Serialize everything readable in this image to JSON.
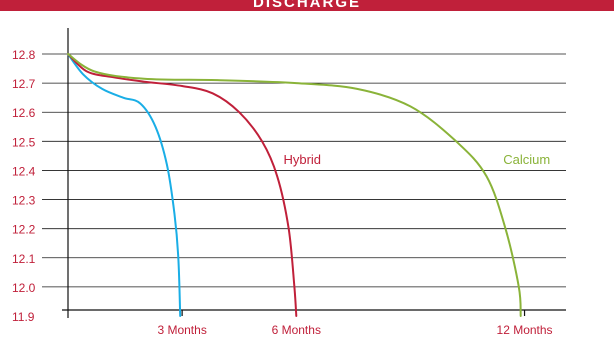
{
  "chart_data": {
    "type": "line",
    "title": "DISCHARGE",
    "xlabel": "",
    "ylabel": "",
    "x_ticks": [
      "3 Months",
      "6 Months",
      "12 Months"
    ],
    "y_ticks": [
      "12.8",
      "12.7",
      "12.6",
      "12.5",
      "12.4",
      "12.3",
      "12.2",
      "12.1",
      "12.0",
      "11.9"
    ],
    "ylim": [
      11.9,
      12.8
    ],
    "xlim_months": [
      0,
      13.3
    ],
    "grid": true,
    "series": [
      {
        "name": "",
        "color": "#1aaee6",
        "points": [
          [
            0,
            12.8
          ],
          [
            0.4,
            12.73
          ],
          [
            0.9,
            12.68
          ],
          [
            1.45,
            12.65
          ],
          [
            1.9,
            12.63
          ],
          [
            2.3,
            12.55
          ],
          [
            2.6,
            12.42
          ],
          [
            2.8,
            12.25
          ],
          [
            2.9,
            12.1
          ],
          [
            2.95,
            11.9
          ]
        ]
      },
      {
        "name": "Hybrid",
        "color": "#c0203a",
        "points": [
          [
            0,
            12.8
          ],
          [
            0.5,
            12.74
          ],
          [
            1.2,
            12.72
          ],
          [
            2.0,
            12.705
          ],
          [
            3.0,
            12.69
          ],
          [
            3.8,
            12.665
          ],
          [
            4.5,
            12.6
          ],
          [
            5.1,
            12.5
          ],
          [
            5.5,
            12.38
          ],
          [
            5.8,
            12.2
          ],
          [
            5.95,
            12.0
          ],
          [
            6.0,
            11.9
          ]
        ]
      },
      {
        "name": "Calcium",
        "color": "#8ab339",
        "points": [
          [
            0,
            12.8
          ],
          [
            0.7,
            12.74
          ],
          [
            2.0,
            12.715
          ],
          [
            4.0,
            12.71
          ],
          [
            6.0,
            12.7
          ],
          [
            7.6,
            12.68
          ],
          [
            9.0,
            12.62
          ],
          [
            10.2,
            12.5
          ],
          [
            11.0,
            12.38
          ],
          [
            11.5,
            12.2
          ],
          [
            11.85,
            12.0
          ],
          [
            11.9,
            11.9
          ]
        ]
      }
    ]
  }
}
